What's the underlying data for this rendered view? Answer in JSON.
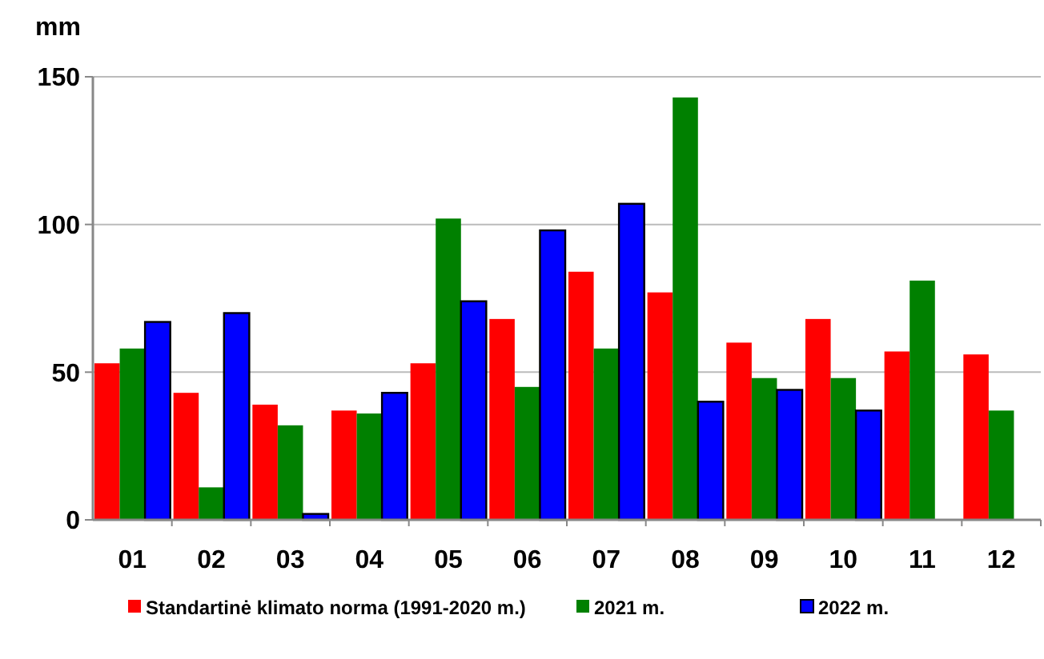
{
  "chart_data": {
    "type": "bar",
    "ylabel": "mm",
    "categories": [
      "01",
      "02",
      "03",
      "04",
      "05",
      "06",
      "07",
      "08",
      "09",
      "10",
      "11",
      "12"
    ],
    "series": [
      {
        "name": "Standartinė klimato norma (1991-2020 m.)",
        "color": "#ff0000",
        "values": [
          53,
          43,
          39,
          37,
          53,
          68,
          84,
          77,
          60,
          68,
          57,
          56
        ]
      },
      {
        "name": "2021 m.",
        "color": "#008000",
        "values": [
          58,
          11,
          32,
          36,
          102,
          45,
          58,
          143,
          48,
          48,
          81,
          37
        ]
      },
      {
        "name": "2022 m.",
        "color": "#0000ff",
        "values": [
          67,
          70,
          2,
          43,
          74,
          98,
          107,
          40,
          44,
          37,
          null,
          null
        ]
      }
    ],
    "ylim": [
      0,
      150
    ],
    "yticks": [
      0,
      50,
      100,
      150
    ],
    "grid": "y",
    "legend": "bottom"
  }
}
